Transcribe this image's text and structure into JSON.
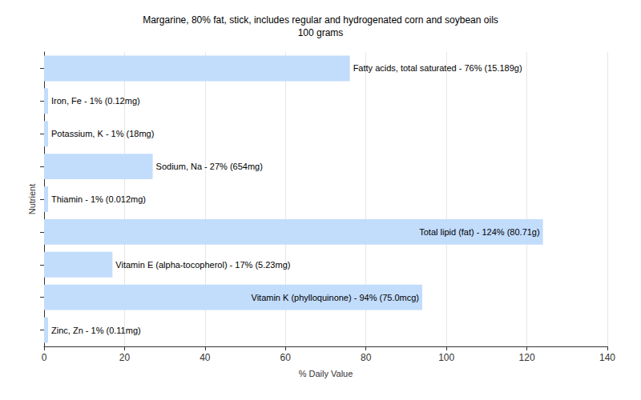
{
  "chart_data": {
    "type": "bar",
    "orientation": "horizontal",
    "title": "Margarine, 80% fat, stick, includes regular and hydrogenated corn and soybean oils",
    "subtitle": "100 grams",
    "x_label": "% Daily Value",
    "y_label": "Nutrient",
    "categories": [
      "Fatty acids, total saturated",
      "Iron, Fe",
      "Potassium, K",
      "Sodium, Na",
      "Thiamin",
      "Total lipid (fat)",
      "Vitamin E (alpha-tocopherol)",
      "Vitamin K (phylloquinone)",
      "Zinc, Zn"
    ],
    "values": [
      76,
      1,
      1,
      27,
      1,
      124,
      17,
      94,
      1
    ],
    "value_labels": [
      "Fatty acids, total saturated - 76% (15.189g)",
      "Iron, Fe - 1% (0.12mg)",
      "Potassium, K - 1% (18mg)",
      "Sodium, Na - 27% (654mg)",
      "Thiamin - 1% (0.012mg)",
      "Total lipid (fat) - 124% (80.71g)",
      "Vitamin E (alpha-tocopherol) - 17% (5.23mg)",
      "Vitamin K (phylloquinone) - 94% (75.0mcg)",
      "Zinc, Zn - 1% (0.11mg)"
    ],
    "data_labels": true,
    "color": "#c2dcfc",
    "xlim": [
      0,
      140
    ],
    "xticks": [
      0,
      20,
      40,
      60,
      80,
      100,
      120,
      140
    ],
    "grid": true,
    "tick_labels": "x"
  }
}
